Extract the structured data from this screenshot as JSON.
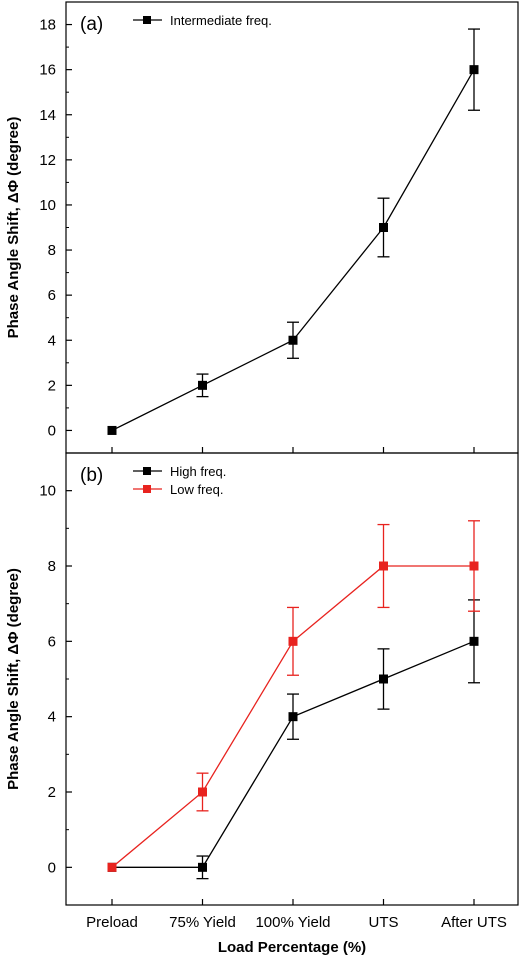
{
  "chart_data": [
    {
      "panel": "(a)",
      "type": "line",
      "categories": [
        "Preload",
        "75% Yield",
        "100% Yield",
        "UTS",
        "After UTS"
      ],
      "ylabel": "Phase Angle Shift, ΔΦ (degree)",
      "ylim": [
        -1,
        19
      ],
      "yticks": [
        0,
        2,
        4,
        6,
        8,
        10,
        12,
        14,
        16,
        18
      ],
      "legend_placement": "top-left",
      "series": [
        {
          "name": "Intermediate freq.",
          "color": "#000000",
          "values": [
            0,
            2,
            4,
            9,
            16
          ],
          "errors": [
            0,
            0.5,
            0.8,
            1.3,
            1.8
          ]
        }
      ]
    },
    {
      "panel": "(b)",
      "type": "line",
      "categories": [
        "Preload",
        "75% Yield",
        "100% Yield",
        "UTS",
        "After UTS"
      ],
      "xlabel": "Load Percentage (%)",
      "ylabel": "Phase Angle Shift, ΔΦ (degree)",
      "ylim": [
        -1,
        11
      ],
      "yticks": [
        0,
        2,
        4,
        6,
        8,
        10
      ],
      "legend_placement": "top-left",
      "series": [
        {
          "name": "High freq.",
          "color": "#000000",
          "values": [
            0,
            0,
            4,
            5,
            6
          ],
          "errors": [
            0,
            0.3,
            0.6,
            0.8,
            1.1
          ]
        },
        {
          "name": "Low freq.",
          "color": "#e8231f",
          "values": [
            0,
            2,
            6,
            8,
            8
          ],
          "errors": [
            0,
            0.5,
            0.9,
            1.1,
            1.2
          ]
        }
      ]
    }
  ]
}
